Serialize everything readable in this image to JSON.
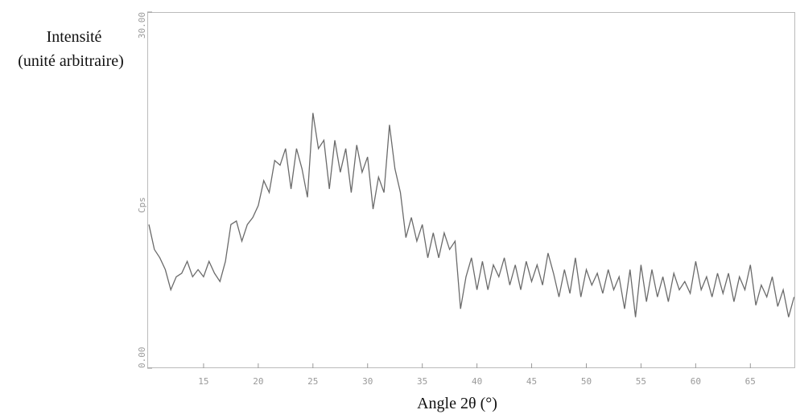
{
  "chart_data": {
    "type": "line",
    "ylabel_lines": [
      "Intensité",
      "(unité arbitraire)"
    ],
    "y_axis_unit": "Cps",
    "xlabel": "Angle 2θ (°)",
    "x": [
      10,
      10.5,
      11,
      11.5,
      12,
      12.5,
      13,
      13.5,
      14,
      14.5,
      15,
      15.5,
      16,
      16.5,
      17,
      17.5,
      18,
      18.5,
      19,
      19.5,
      20,
      20.5,
      21,
      21.5,
      22,
      22.5,
      23,
      23.5,
      24,
      24.5,
      25,
      25.5,
      26,
      26.5,
      27,
      27.5,
      28,
      28.5,
      29,
      29.5,
      30,
      30.5,
      31,
      31.5,
      32,
      32.5,
      33,
      33.5,
      34,
      34.5,
      35,
      35.5,
      36,
      36.5,
      37,
      37.5,
      38,
      38.5,
      39,
      39.5,
      40,
      40.5,
      41,
      41.5,
      42,
      42.5,
      43,
      43.5,
      44,
      44.5,
      45,
      45.5,
      46,
      46.5,
      47,
      47.5,
      48,
      48.5,
      49,
      49.5,
      50,
      50.5,
      51,
      51.5,
      52,
      52.5,
      53,
      53.5,
      54,
      54.5,
      55,
      55.5,
      56,
      56.5,
      57,
      57.5,
      58,
      58.5,
      59,
      59.5,
      60,
      60.5,
      61,
      61.5,
      62,
      62.5,
      63,
      63.5,
      64,
      64.5,
      65,
      65.5,
      66,
      66.5,
      67,
      67.5,
      68,
      68.5,
      69
    ],
    "values": [
      12.1,
      10.0,
      9.3,
      8.3,
      6.6,
      7.7,
      8.0,
      9.0,
      7.7,
      8.3,
      7.7,
      9.0,
      8.0,
      7.3,
      9.0,
      12.1,
      12.4,
      10.7,
      12.1,
      12.7,
      13.7,
      15.8,
      14.8,
      17.5,
      17.1,
      18.5,
      15.1,
      18.5,
      16.8,
      14.4,
      21.5,
      18.5,
      19.2,
      15.1,
      19.2,
      16.5,
      18.5,
      14.8,
      18.8,
      16.5,
      17.8,
      13.4,
      16.1,
      14.8,
      20.5,
      16.8,
      14.8,
      11.0,
      12.7,
      10.7,
      12.1,
      9.3,
      11.4,
      9.3,
      11.4,
      10.0,
      10.7,
      5.0,
      7.7,
      9.3,
      6.6,
      9.0,
      6.6,
      8.7,
      7.7,
      9.3,
      7.0,
      8.7,
      6.6,
      9.0,
      7.3,
      8.7,
      7.0,
      9.7,
      8.0,
      6.0,
      8.3,
      6.3,
      9.3,
      6.0,
      8.3,
      7.0,
      8.0,
      6.3,
      8.3,
      6.6,
      7.7,
      5.0,
      8.3,
      4.3,
      8.7,
      5.6,
      8.3,
      6.0,
      7.7,
      5.6,
      8.0,
      6.6,
      7.3,
      6.3,
      9.0,
      6.6,
      7.7,
      6.0,
      8.0,
      6.3,
      8.0,
      5.6,
      7.7,
      6.6,
      8.7,
      5.3,
      7.0,
      6.0,
      7.7,
      5.2,
      6.6,
      4.3,
      6.0
    ],
    "color": "#6b6b6b",
    "xlim": [
      10,
      69.1
    ],
    "xticks": [
      15,
      20,
      25,
      30,
      35,
      40,
      45,
      50,
      55,
      60,
      65
    ],
    "ylim": [
      0,
      30
    ],
    "yticks": [
      {
        "value": 0,
        "label": "0.00"
      },
      {
        "value": 30,
        "label": "30.00"
      }
    ]
  }
}
